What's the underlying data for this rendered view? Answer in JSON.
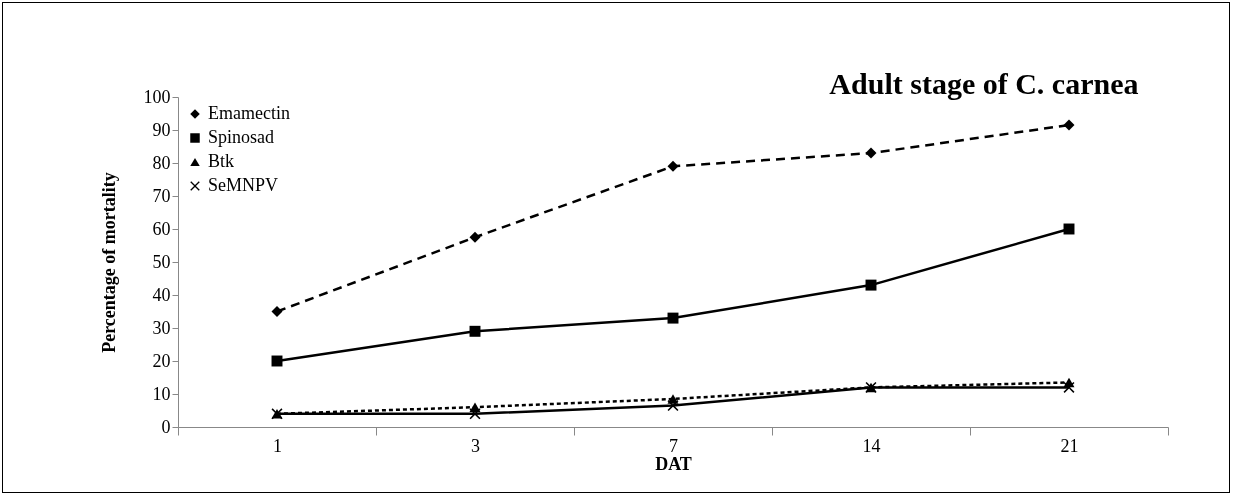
{
  "chart_data": {
    "type": "line",
    "title": "Adult stage of C. carnea",
    "xlabel": "DAT",
    "ylabel": "Percentage of mortality",
    "categories": [
      "1",
      "3",
      "7",
      "14",
      "21"
    ],
    "series": [
      {
        "name": "Emamectin",
        "color": "#000000",
        "marker": "diamond",
        "line_style": "dashed",
        "values": [
          35,
          57.5,
          79,
          83,
          91.5
        ]
      },
      {
        "name": "Spinosad",
        "color": "#000000",
        "marker": "square",
        "line_style": "solid",
        "values": [
          20,
          29,
          33,
          43,
          60
        ]
      },
      {
        "name": "Btk",
        "color": "#000000",
        "marker": "triangle",
        "line_style": "dotted",
        "values": [
          4,
          6,
          8.5,
          12,
          13.5
        ]
      },
      {
        "name": "SeMNPV",
        "color": "#000000",
        "marker": "cross",
        "line_style": "solid",
        "values": [
          4,
          4,
          6.5,
          12,
          12
        ]
      }
    ],
    "ylim": [
      0,
      100
    ],
    "yticks": [
      0,
      10,
      20,
      30,
      40,
      50,
      60,
      70,
      80,
      90,
      100
    ],
    "grid": false,
    "legend": "top left"
  }
}
